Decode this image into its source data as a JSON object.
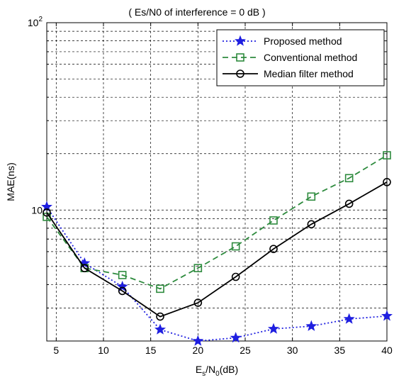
{
  "chart_data": {
    "type": "line",
    "title": "( Es/N0 of interference = 0 dB )",
    "xlabel": "E",
    "xlabel_sub1": "s",
    "xlabel_mid": "/N",
    "xlabel_sub2": "0",
    "xlabel_tail": "(dB)",
    "ylabel": "MAE(ns)",
    "xlim": [
      4,
      40
    ],
    "ylim": [
      2,
      100
    ],
    "yscale": "log",
    "grid": true,
    "legend_position": "top-right",
    "x_ticks": [
      5,
      10,
      15,
      20,
      25,
      30,
      35,
      40
    ],
    "y_ticks": [
      {
        "value": 10,
        "base": "10",
        "exp": ""
      },
      {
        "value": 100,
        "base": "10",
        "exp": "2"
      }
    ],
    "x": [
      4,
      8,
      12,
      16,
      20,
      24,
      28,
      32,
      36,
      40
    ],
    "series": [
      {
        "name": "Proposed method",
        "color": "#1f1fe0",
        "marker": "star",
        "dash": "2,3",
        "values": [
          10.4,
          5.2,
          3.9,
          2.3,
          2.0,
          2.08,
          2.32,
          2.4,
          2.62,
          2.72
        ]
      },
      {
        "name": "Conventional method",
        "color": "#2e8b3e",
        "marker": "square",
        "dash": "8,5",
        "values": [
          9.2,
          4.9,
          4.5,
          3.8,
          4.9,
          6.4,
          8.8,
          11.8,
          14.8,
          19.6
        ]
      },
      {
        "name": "Median filter method",
        "color": "#000000",
        "marker": "circle",
        "dash": "",
        "values": [
          9.7,
          4.9,
          3.7,
          2.7,
          3.2,
          4.4,
          6.2,
          8.4,
          10.8,
          14.1
        ]
      }
    ]
  }
}
